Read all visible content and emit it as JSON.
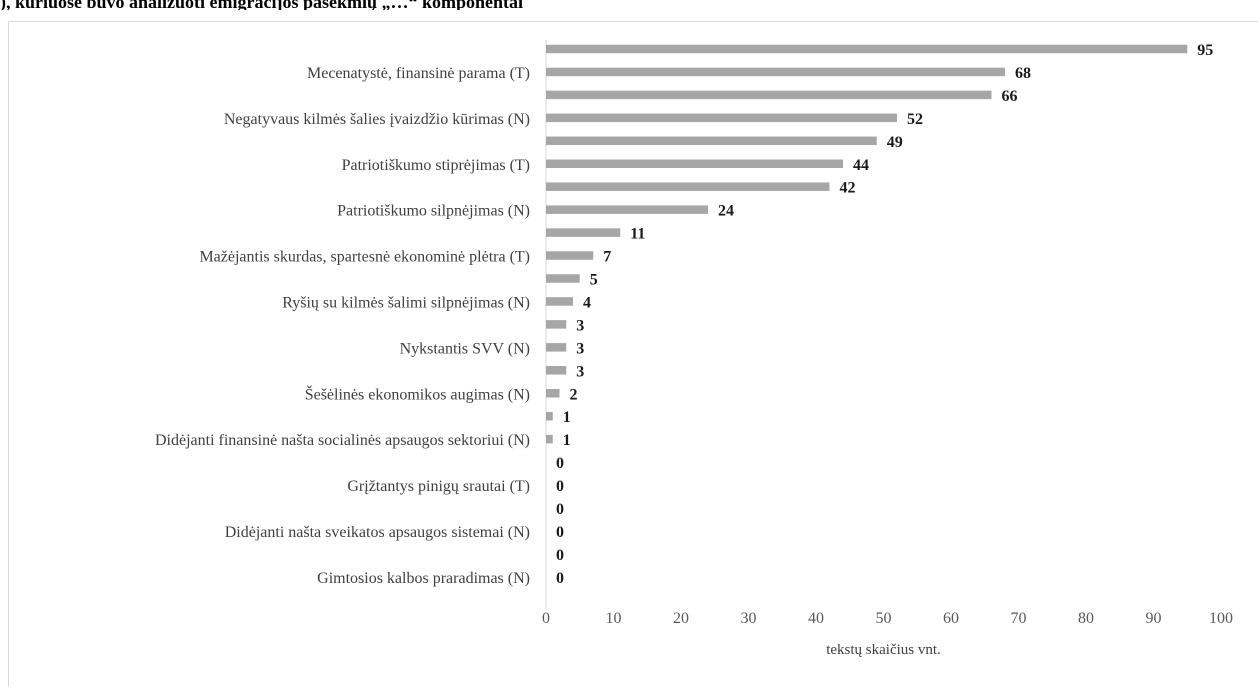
{
  "title_fragment": "), kuriuose buvo analizuoti emigracijos pasekmių „…“ komponentai",
  "chart_data": {
    "type": "bar",
    "orientation": "horizontal",
    "categories": [
      "",
      "Mecenatystė, finansinė parama  (T)",
      "",
      "Negatyvaus kilmės šalies įvaizdžio kūrimas (N)",
      "",
      "Patriotiškumo stiprėjimas (T)",
      "",
      "Patriotiškumo silpnėjimas (N)",
      "",
      "Mažėjantis skurdas, spartesnė ekonominė plėtra (T)",
      "",
      "Ryšių su kilmės šalimi silpnėjimas (N)",
      "",
      "Nykstantis SVV (N)",
      "",
      "Šešėlinės ekonomikos augimas (N)",
      "",
      "Didėjanti finansinė našta socialinės apsaugos sektoriui (N)",
      "",
      "Grįžtantys pinigų srautai (T)",
      "",
      "Didėjanti našta sveikatos apsaugos sistemai (N)",
      "",
      "Gimtosios kalbos praradimas (N)"
    ],
    "values": [
      95,
      68,
      66,
      52,
      49,
      44,
      42,
      24,
      11,
      7,
      5,
      4,
      3,
      3,
      3,
      2,
      1,
      1,
      0,
      0,
      0,
      0,
      0,
      0
    ],
    "xlim": [
      0,
      100
    ],
    "xticks": [
      0,
      10,
      20,
      30,
      40,
      50,
      60,
      70,
      80,
      90,
      100
    ],
    "xlabel": "tekstų skaičius vnt.",
    "bar_color": "#a6a6a6",
    "axis_color": "#d9d9d9",
    "grid": false,
    "legend": false
  }
}
